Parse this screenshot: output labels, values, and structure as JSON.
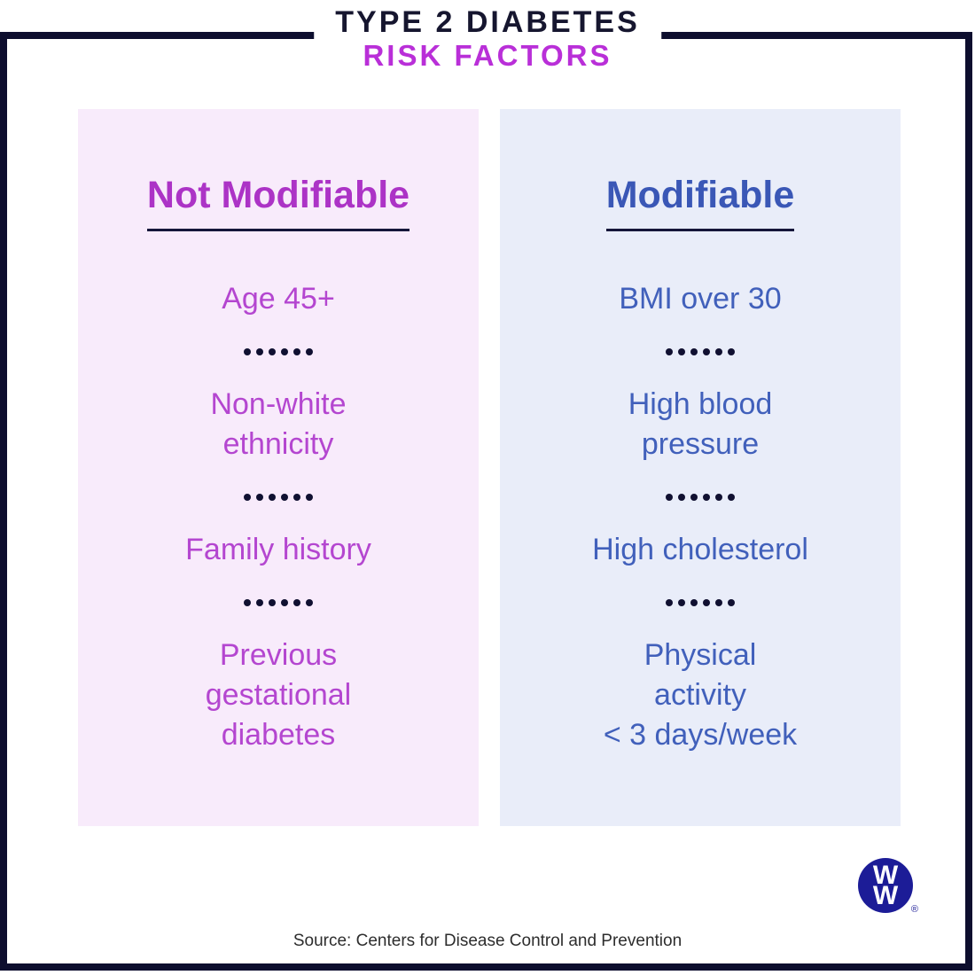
{
  "title": {
    "line1": "TYPE 2 DIABETES",
    "line2": "RISK FACTORS"
  },
  "columns": [
    {
      "header": "Not Modifiable",
      "items": [
        "Age 45+",
        "Non-white\nethnicity",
        "Family history",
        "Previous\ngestational\ndiabetes"
      ]
    },
    {
      "header": "Modifiable",
      "items": [
        "BMI over 30",
        "High blood\npressure",
        "High cholesterol",
        "Physical\nactivity\n< 3 days/week"
      ]
    }
  ],
  "separator": {
    "type": "dots",
    "count": 6
  },
  "logo": {
    "letter_top": "W",
    "letter_bottom": "W",
    "registered": "®"
  },
  "footer": {
    "source": "Source: Centers for Disease Control and Prevention"
  },
  "colors": {
    "frame_navy": "#0d0e2e",
    "title_navy": "#16162f",
    "title_magenta": "#b92fd8",
    "header_magenta": "#ac33c6",
    "item_magenta": "#b446d0",
    "header_blue": "#3a57b6",
    "item_blue": "#4160bb",
    "panel_pink_bg": "#f8ebfb",
    "panel_blue_bg": "#e9edf9",
    "dot_navy": "#101031",
    "logo_blue": "#1c1c97",
    "source_text": "#2d2d2d"
  }
}
